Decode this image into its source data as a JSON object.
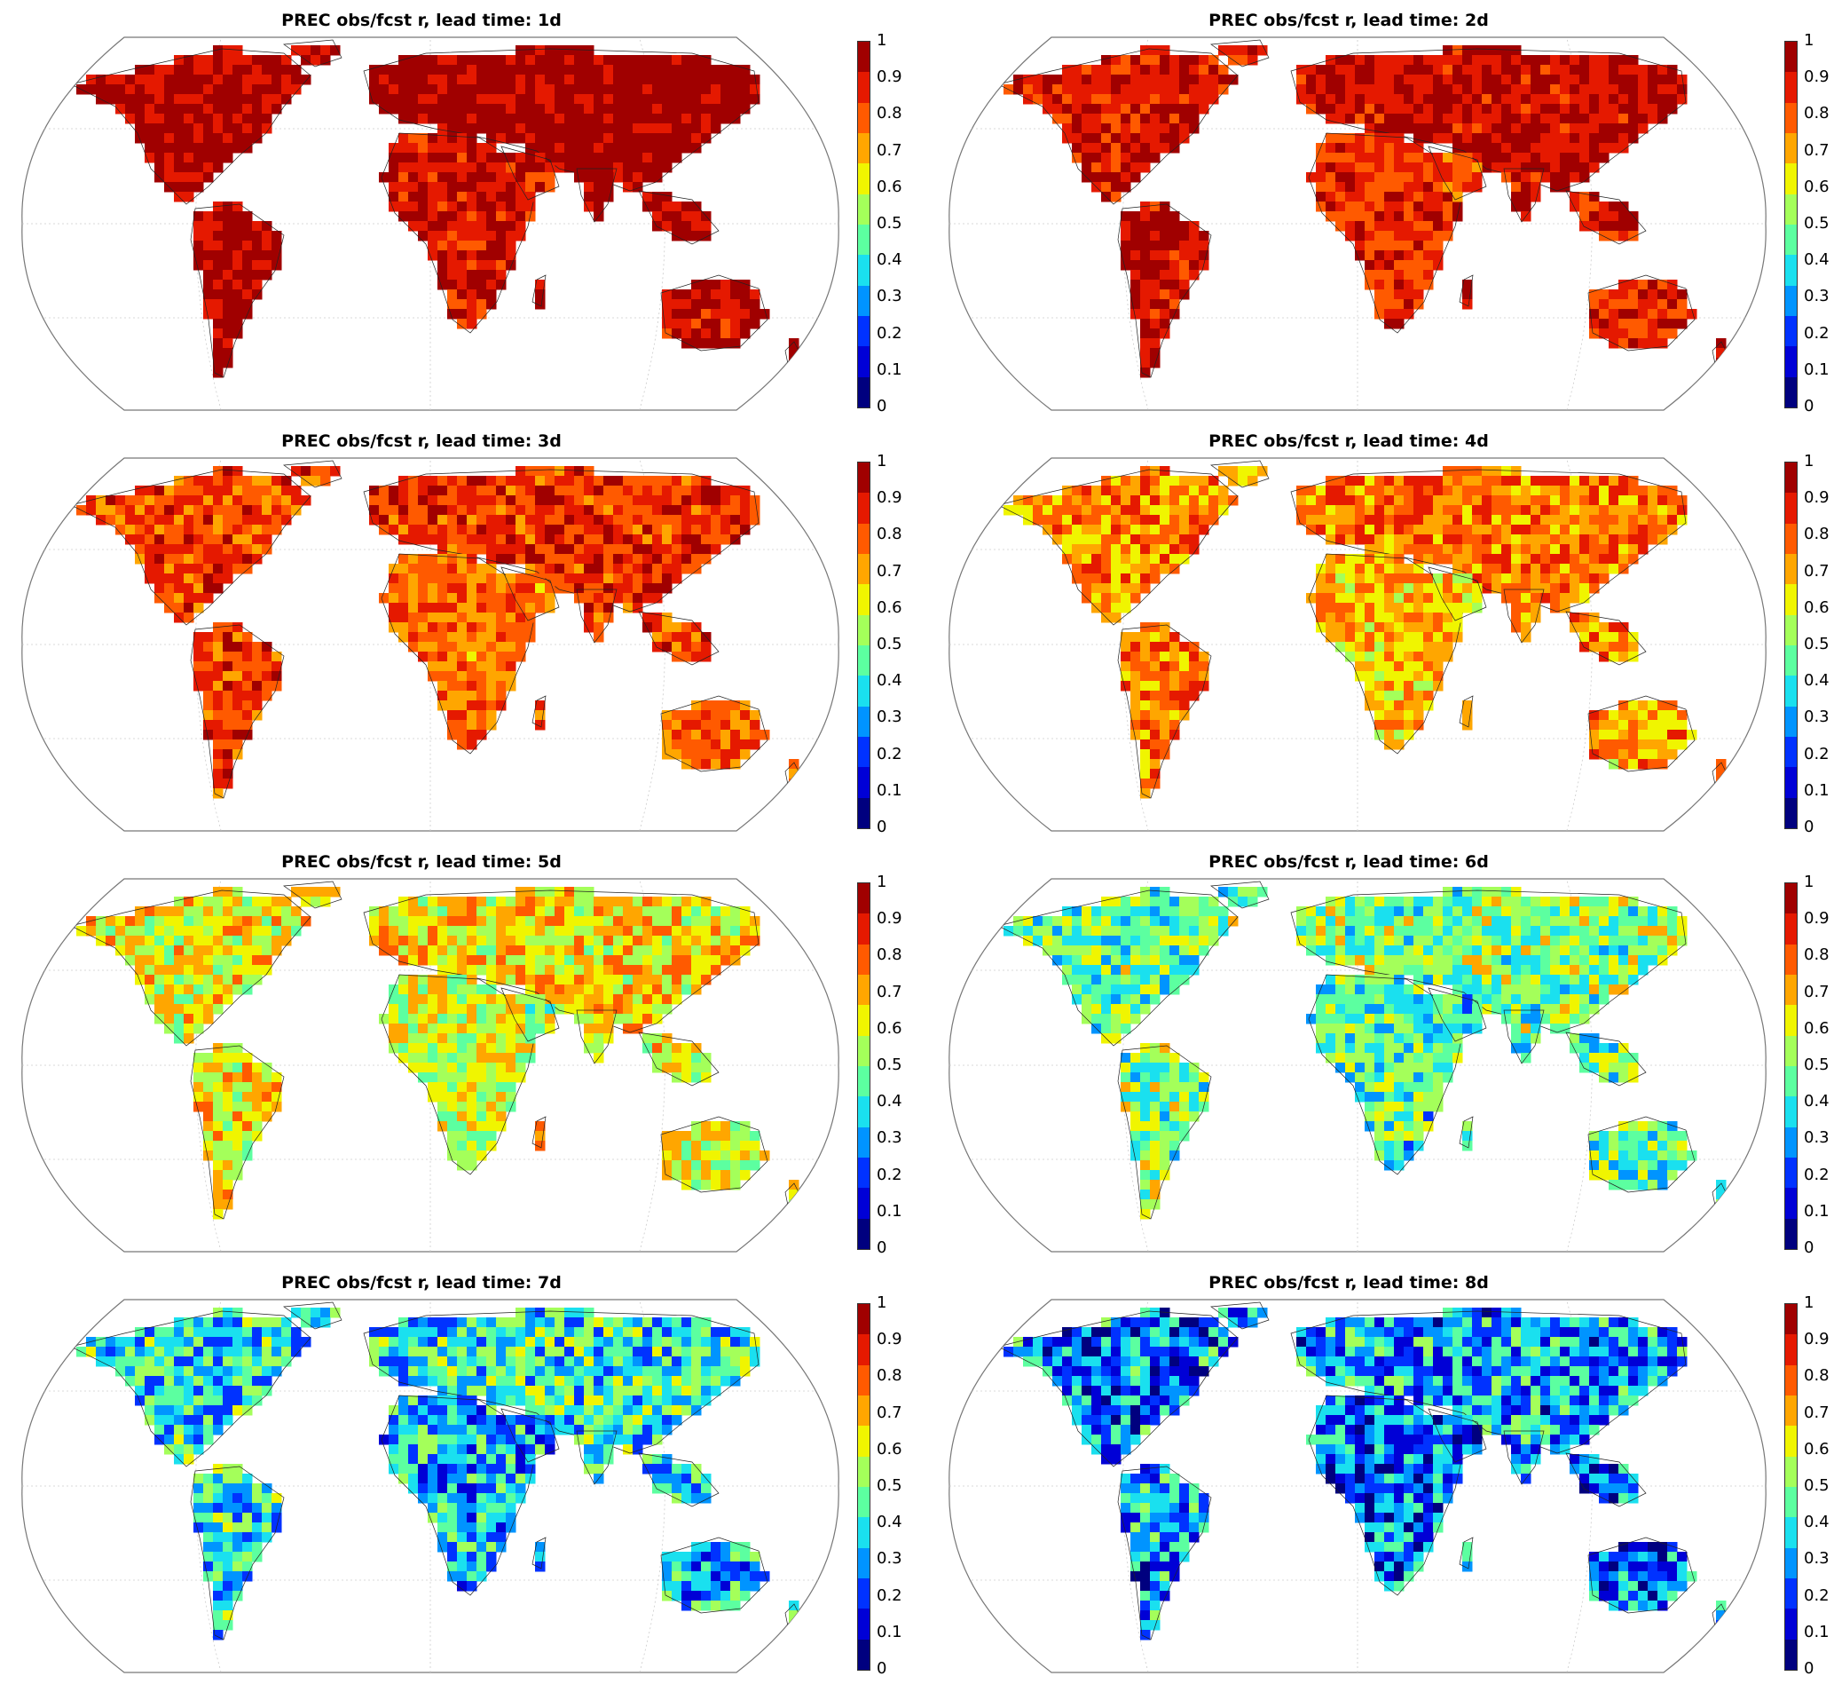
{
  "figure": {
    "variable": "PREC",
    "metric": "obs/fcst r",
    "colorbar_ticks": [
      "1",
      "0.9",
      "0.8",
      "0.7",
      "0.6",
      "0.5",
      "0.4",
      "0.3",
      "0.2",
      "0.1",
      "0"
    ],
    "colormap": [
      "#00007f",
      "#0000d6",
      "#0032ff",
      "#0094ff",
      "#1ae0ef",
      "#5cffa0",
      "#a4ff5a",
      "#f0f500",
      "#ffa600",
      "#ff5a00",
      "#e51900",
      "#a00000"
    ]
  },
  "panels": [
    {
      "title": "PREC obs/fcst r, lead time: 1d",
      "lead_days": 1,
      "map_level": 0.94
    },
    {
      "title": "PREC obs/fcst r, lead time: 2d",
      "lead_days": 2,
      "map_level": 0.89
    },
    {
      "title": "PREC obs/fcst r, lead time: 3d",
      "lead_days": 3,
      "map_level": 0.82
    },
    {
      "title": "PREC obs/fcst r, lead time: 4d",
      "lead_days": 4,
      "map_level": 0.74
    },
    {
      "title": "PREC obs/fcst r, lead time: 5d",
      "lead_days": 5,
      "map_level": 0.62
    },
    {
      "title": "PREC obs/fcst r, lead time: 6d",
      "lead_days": 6,
      "map_level": 0.48
    },
    {
      "title": "PREC obs/fcst r, lead time: 7d",
      "lead_days": 7,
      "map_level": 0.38
    },
    {
      "title": "PREC obs/fcst r, lead time: 8d",
      "lead_days": 8,
      "map_level": 0.28
    }
  ]
}
